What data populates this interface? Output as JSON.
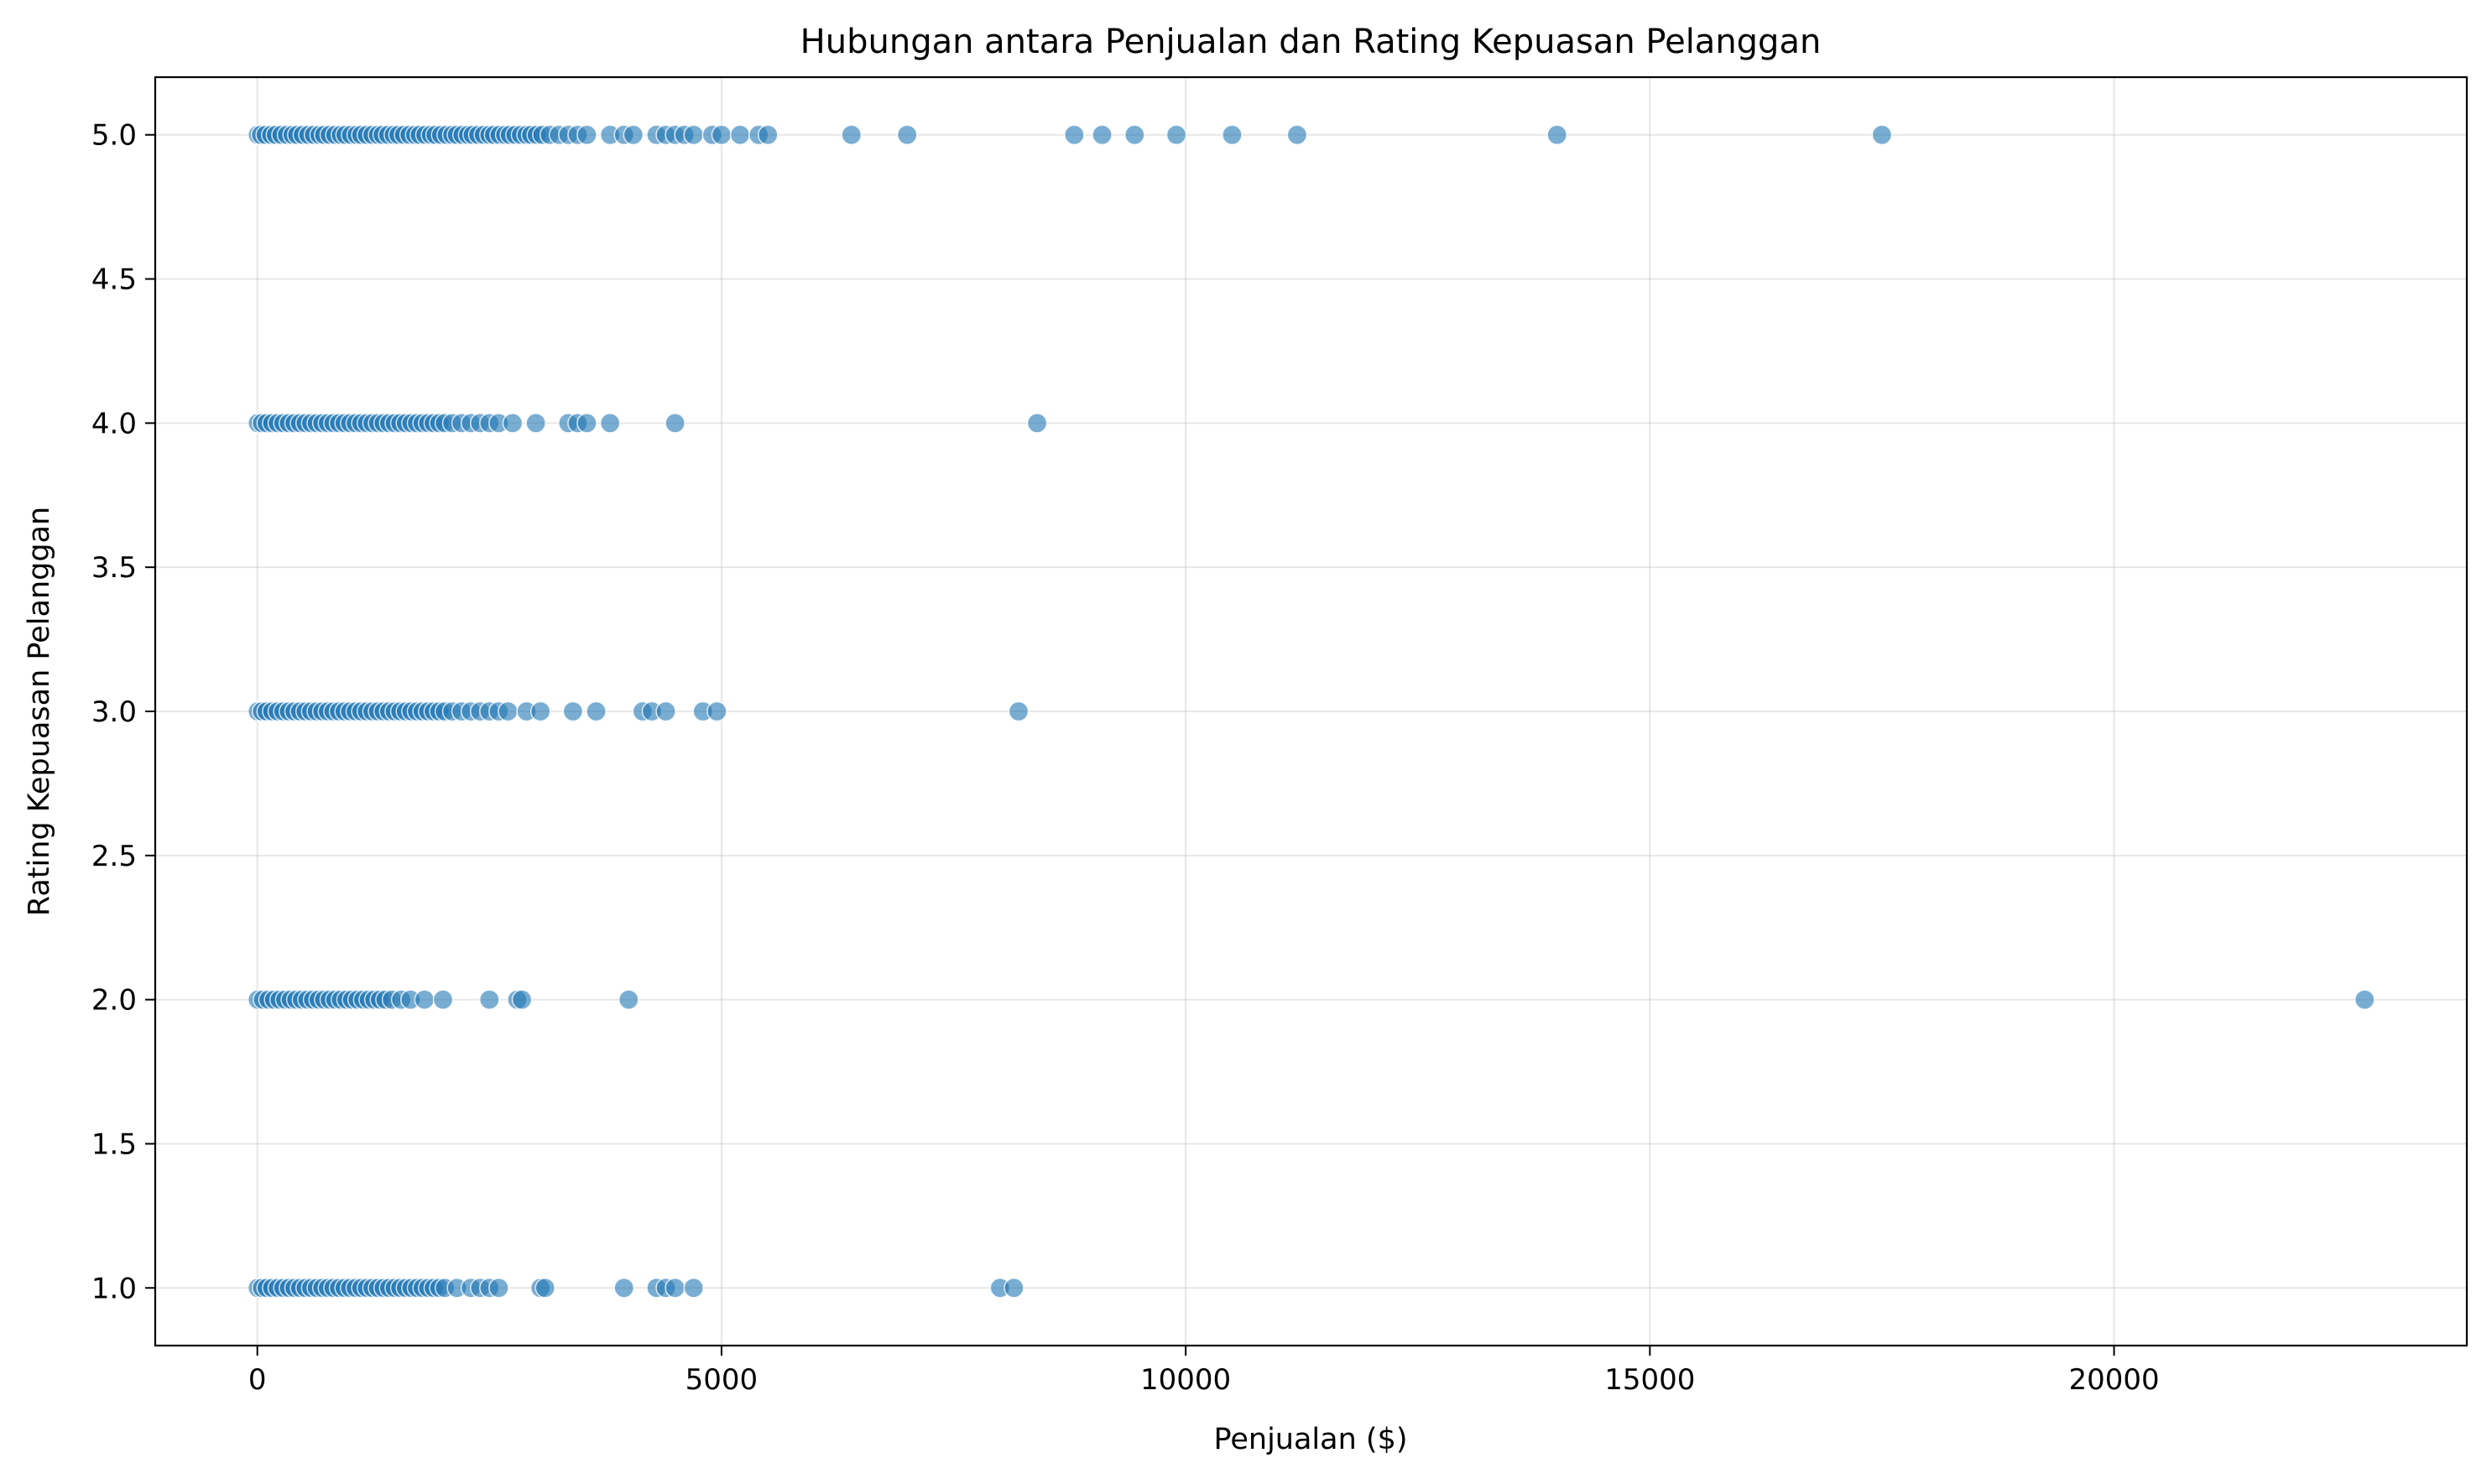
{
  "chart_data": {
    "type": "scatter",
    "title": "Hubungan antara Penjualan dan Rating Kepuasan Pelanggan",
    "xlabel": "Penjualan ($)",
    "ylabel": "Rating Kepuasan Pelanggan",
    "xlim": [
      -1100,
      23800
    ],
    "ylim": [
      0.8,
      5.2
    ],
    "x_ticks": [
      0,
      5000,
      10000,
      15000,
      20000
    ],
    "x_tick_labels": [
      "0",
      "5000",
      "10000",
      "15000",
      "20000"
    ],
    "y_ticks": [
      1.0,
      1.5,
      2.0,
      2.5,
      3.0,
      3.5,
      4.0,
      4.5,
      5.0
    ],
    "y_tick_labels": [
      "1.0",
      "1.5",
      "2.0",
      "2.5",
      "3.0",
      "3.5",
      "4.0",
      "4.5",
      "5.0"
    ],
    "grid": true,
    "marker_color": "#1f77b4",
    "series": [
      {
        "rating": 5.0,
        "x": [
          5,
          40,
          90,
          150,
          200,
          260,
          320,
          380,
          430,
          490,
          550,
          610,
          670,
          720,
          780,
          840,
          900,
          950,
          1010,
          1070,
          1120,
          1180,
          1240,
          1300,
          1350,
          1410,
          1470,
          1520,
          1580,
          1640,
          1700,
          1750,
          1810,
          1870,
          1920,
          1980,
          2040,
          2100,
          2150,
          2210,
          2270,
          2320,
          2380,
          2440,
          2500,
          2550,
          2610,
          2670,
          2720,
          2780,
          2840,
          2900,
          2950,
          3010,
          3070,
          3150,
          3250,
          3350,
          3450,
          3550,
          3800,
          3950,
          4050,
          4300,
          4400,
          4500,
          4600,
          4700,
          4900,
          5000,
          5200,
          5400,
          5500,
          6400,
          7000,
          8800,
          9100,
          9450,
          9900,
          10500,
          11200,
          14000,
          17500
        ]
      },
      {
        "rating": 4.0,
        "x": [
          5,
          50,
          100,
          160,
          220,
          280,
          340,
          400,
          460,
          520,
          580,
          640,
          700,
          760,
          820,
          880,
          940,
          1000,
          1060,
          1120,
          1180,
          1240,
          1300,
          1360,
          1420,
          1480,
          1540,
          1600,
          1660,
          1720,
          1780,
          1840,
          1900,
          1960,
          2020,
          2100,
          2200,
          2300,
          2400,
          2500,
          2600,
          2750,
          3000,
          3350,
          3450,
          3550,
          3800,
          4500,
          8400
        ]
      },
      {
        "rating": 3.0,
        "x": [
          5,
          50,
          100,
          160,
          220,
          280,
          340,
          400,
          460,
          520,
          580,
          640,
          700,
          760,
          820,
          880,
          940,
          1000,
          1060,
          1120,
          1180,
          1240,
          1300,
          1360,
          1420,
          1480,
          1540,
          1600,
          1660,
          1720,
          1780,
          1840,
          1900,
          1960,
          2020,
          2100,
          2200,
          2300,
          2400,
          2500,
          2600,
          2700,
          2900,
          3050,
          3400,
          3650,
          4150,
          4250,
          4400,
          4800,
          4950,
          8200
        ]
      },
      {
        "rating": 2.0,
        "x": [
          5,
          60,
          120,
          180,
          240,
          300,
          360,
          420,
          480,
          540,
          600,
          660,
          720,
          780,
          840,
          900,
          960,
          1020,
          1080,
          1140,
          1200,
          1260,
          1320,
          1380,
          1450,
          1550,
          1650,
          1800,
          2000,
          2500,
          2800,
          2850,
          4000,
          22700
        ]
      },
      {
        "rating": 1.0,
        "x": [
          5,
          50,
          100,
          160,
          220,
          280,
          340,
          400,
          460,
          520,
          580,
          640,
          700,
          760,
          820,
          880,
          940,
          1000,
          1060,
          1120,
          1180,
          1240,
          1300,
          1360,
          1420,
          1480,
          1540,
          1600,
          1660,
          1720,
          1780,
          1840,
          1900,
          1960,
          2020,
          2150,
          2300,
          2400,
          2500,
          2600,
          3050,
          3100,
          3950,
          4300,
          4400,
          4500,
          4700,
          8000,
          8150
        ]
      }
    ]
  }
}
